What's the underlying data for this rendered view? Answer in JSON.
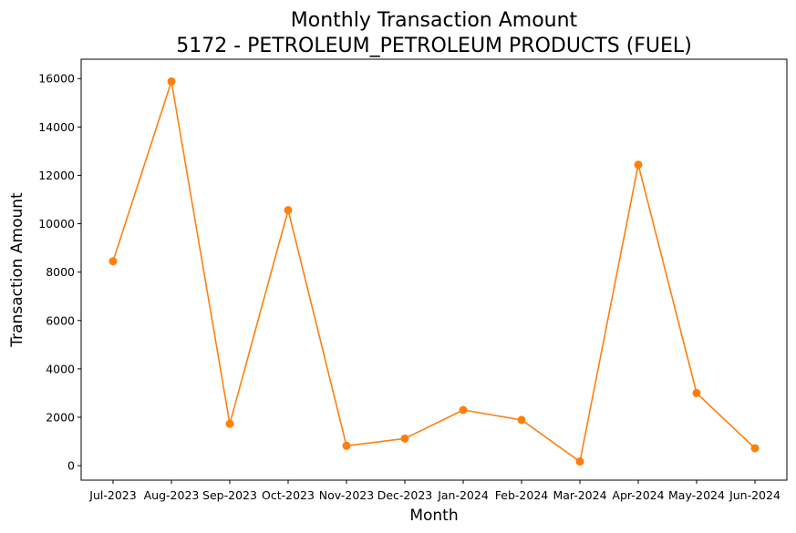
{
  "chart_data": {
    "type": "line",
    "title": [
      "Monthly Transaction Amount",
      "5172 - PETROLEUM_PETROLEUM PRODUCTS (FUEL)"
    ],
    "xlabel": "Month",
    "ylabel": "Transaction Amount",
    "categories": [
      "Jul-2023",
      "Aug-2023",
      "Sep-2023",
      "Oct-2023",
      "Nov-2023",
      "Dec-2023",
      "Jan-2024",
      "Feb-2024",
      "Mar-2024",
      "Apr-2024",
      "May-2024",
      "Jun-2024"
    ],
    "yticks": [
      0,
      2000,
      4000,
      6000,
      8000,
      10000,
      12000,
      14000,
      16000
    ],
    "ylim": [
      -600,
      16800
    ],
    "grid": false,
    "legend": "none",
    "series": [
      {
        "color": "#ff7f0e",
        "marker": "circle",
        "values": [
          8450,
          15880,
          1730,
          10560,
          820,
          1120,
          2300,
          1890,
          170,
          12440,
          3000,
          720
        ]
      }
    ]
  }
}
